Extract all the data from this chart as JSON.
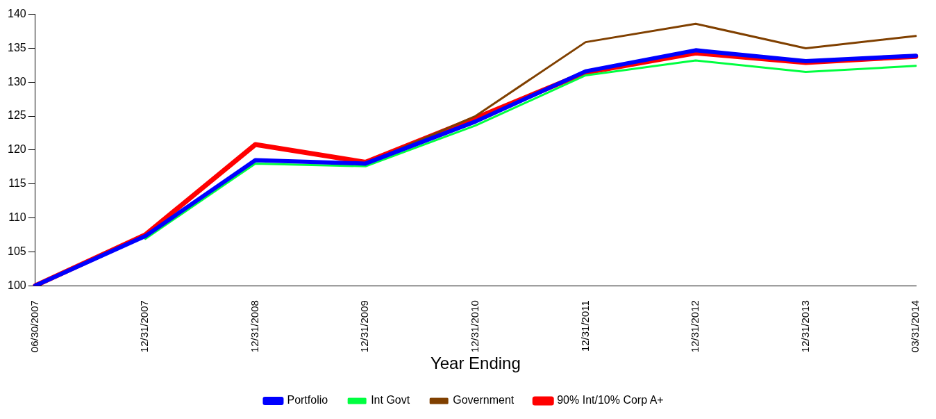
{
  "chart_data": {
    "type": "line",
    "xlabel": "Year Ending",
    "categories": [
      "06/30/2007",
      "12/31/2007",
      "12/31/2008",
      "12/31/2009",
      "12/31/2010",
      "12/31/2011",
      "12/31/2012",
      "12/31/2013",
      "03/31/2014"
    ],
    "series": [
      {
        "name": "Portfolio",
        "color": "#0000ff",
        "values": [
          100,
          107.3,
          118.5,
          118.0,
          124.2,
          131.6,
          134.7,
          133.1,
          133.9
        ]
      },
      {
        "name": "Int Govt",
        "color": "#00ff40",
        "values": [
          null,
          106.9,
          118.0,
          117.6,
          123.6,
          131.0,
          133.2,
          131.5,
          132.4
        ]
      },
      {
        "name": "Government",
        "color": "#804000",
        "values": [
          null,
          null,
          null,
          118.0,
          125.0,
          135.9,
          138.6,
          135.0,
          136.8
        ]
      },
      {
        "name": "90% Int/10% Corp A+",
        "color": "#ff0000",
        "values": [
          100,
          107.5,
          120.8,
          118.2,
          124.7,
          131.4,
          134.3,
          132.9,
          133.8
        ]
      }
    ],
    "ylim": [
      100,
      140
    ],
    "yticks": [
      100,
      105,
      110,
      115,
      120,
      125,
      130,
      135,
      140
    ],
    "grid": false,
    "legend": "bottom",
    "marker": "none",
    "line_style": "solid"
  }
}
